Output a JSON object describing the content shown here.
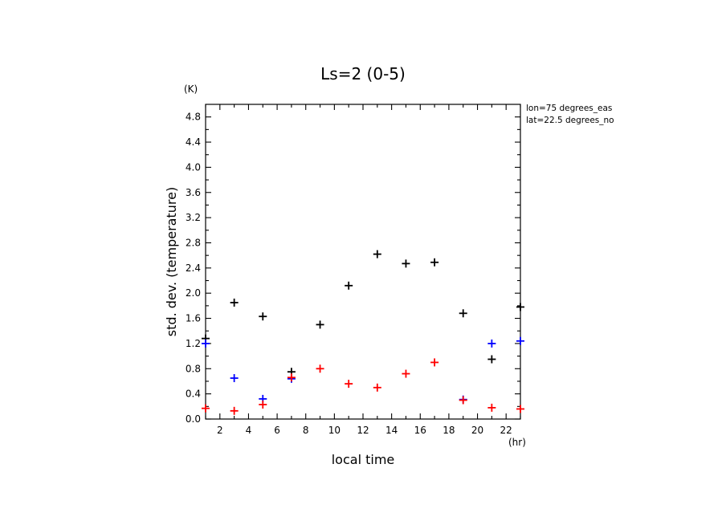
{
  "chart_data": {
    "type": "scatter",
    "title": "Ls=2 (0-5)",
    "xlabel": "local time",
    "ylabel": "std. dev. (temperature)",
    "xunit": "(hr)",
    "yunit": "(K)",
    "xlim": [
      1,
      23
    ],
    "ylim": [
      0,
      5.0
    ],
    "xticks": [
      2,
      4,
      6,
      8,
      10,
      12,
      14,
      16,
      18,
      20,
      22
    ],
    "yticks": [
      0.0,
      0.4,
      0.8,
      1.2,
      1.6,
      2.0,
      2.4,
      2.8,
      3.2,
      3.6,
      4.0,
      4.4,
      4.8
    ],
    "yticks_text": [
      "0.0",
      "0.4",
      "0.8",
      "1.2",
      "1.6",
      "2.0",
      "2.4",
      "2.8",
      "3.2",
      "3.6",
      "4.0",
      "4.4",
      "4.8"
    ],
    "info_lines": [
      "lon=75 degrees_eas",
      "lat=22.5 degrees_no"
    ],
    "grid": false,
    "series": [
      {
        "color": "#000000",
        "x": [
          1,
          3,
          5,
          7,
          9,
          11,
          13,
          15,
          17,
          19,
          21,
          23
        ],
        "y": [
          1.28,
          1.85,
          1.63,
          0.75,
          1.5,
          2.12,
          2.62,
          2.47,
          2.49,
          1.68,
          0.95,
          1.78
        ]
      },
      {
        "color": "#0000ff",
        "x": [
          1,
          3,
          5,
          7,
          19,
          21,
          23
        ],
        "y": [
          1.2,
          0.65,
          0.32,
          0.64,
          0.31,
          1.2,
          1.24
        ]
      },
      {
        "color": "#ff0000",
        "x": [
          1,
          3,
          5,
          7,
          9,
          11,
          13,
          15,
          17,
          19,
          21,
          23
        ],
        "y": [
          0.17,
          0.13,
          0.23,
          0.66,
          0.8,
          0.56,
          0.5,
          0.72,
          0.9,
          0.3,
          0.18,
          0.16
        ]
      }
    ]
  }
}
